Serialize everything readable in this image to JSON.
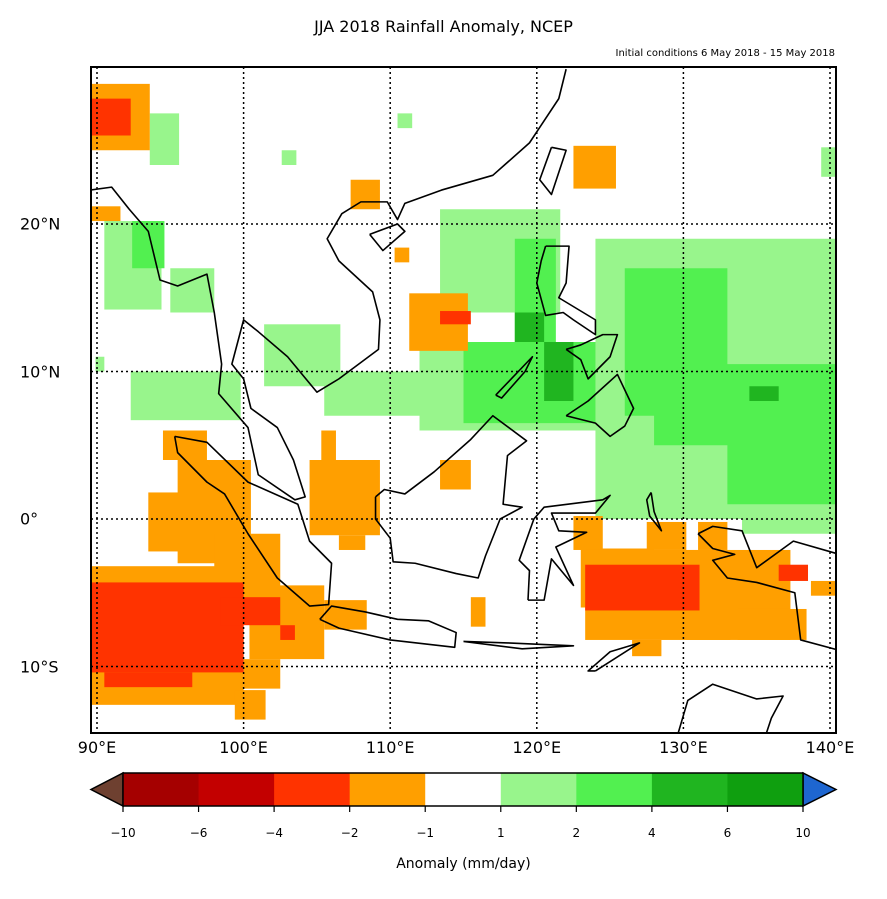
{
  "title": "JJA 2018 Rainfall Anomaly, NCEP",
  "subtitle": "Initial conditions 6 May 2018 - 15 May 2018",
  "map": {
    "extent": {
      "lon": [
        89.6,
        140.4
      ],
      "lat": [
        -14.5,
        30.3
      ]
    },
    "gridlines": "dotted",
    "lon_ticks": [
      {
        "value": 90,
        "label": "90°E"
      },
      {
        "value": 100,
        "label": "100°E"
      },
      {
        "value": 110,
        "label": "110°E"
      },
      {
        "value": 120,
        "label": "120°E"
      },
      {
        "value": 130,
        "label": "130°E"
      },
      {
        "value": 140,
        "label": "140°E"
      }
    ],
    "lat_ticks": [
      {
        "value": 20,
        "label": "20°N"
      },
      {
        "value": 10,
        "label": "10°N"
      },
      {
        "value": 0,
        "label": "0°"
      },
      {
        "value": -10,
        "label": "10°S"
      }
    ],
    "anomaly_regions": [
      {
        "lon": [
          90.5,
          94.4
        ],
        "lat": [
          14.2,
          20.2
        ],
        "bin": "1..2"
      },
      {
        "lon": [
          93.6,
          95.6
        ],
        "lat": [
          24,
          27.5
        ],
        "bin": "1..2"
      },
      {
        "lon": [
          92.3,
          99.8
        ],
        "lat": [
          6.7,
          10
        ],
        "bin": "1..2"
      },
      {
        "lon": [
          95,
          98
        ],
        "lat": [
          14,
          17
        ],
        "bin": "1..2"
      },
      {
        "lon": [
          101.4,
          106.6
        ],
        "lat": [
          9,
          13.2
        ],
        "bin": "1..2"
      },
      {
        "lon": [
          105.5,
          116.2
        ],
        "lat": [
          7,
          10
        ],
        "bin": "1..2"
      },
      {
        "lon": [
          113.4,
          121.6
        ],
        "lat": [
          14,
          21
        ],
        "bin": "1..2"
      },
      {
        "lon": [
          112,
          125
        ],
        "lat": [
          6,
          12
        ],
        "bin": "1..2"
      },
      {
        "lon": [
          124,
          140.4
        ],
        "lat": [
          0,
          19
        ],
        "bin": "1..2"
      },
      {
        "lon": [
          134,
          140.4
        ],
        "lat": [
          -1,
          1
        ],
        "bin": "1..2"
      },
      {
        "lon": [
          139.4,
          140.4
        ],
        "lat": [
          23.2,
          25.2
        ],
        "bin": "1..2"
      },
      {
        "lon": [
          110.5,
          111.5
        ],
        "lat": [
          26.5,
          27.5
        ],
        "bin": "1..2"
      },
      {
        "lon": [
          102.6,
          103.6
        ],
        "lat": [
          24,
          25
        ],
        "bin": "1..2"
      },
      {
        "lon": [
          89.9,
          90.5
        ],
        "lat": [
          10,
          11
        ],
        "bin": "1..2"
      },
      {
        "lon": [
          92.4,
          94.6
        ],
        "lat": [
          17,
          20.2
        ],
        "bin": "2..4"
      },
      {
        "lon": [
          118.5,
          121.3
        ],
        "lat": [
          10,
          19
        ],
        "bin": "2..4"
      },
      {
        "lon": [
          115,
          124
        ],
        "lat": [
          6.5,
          12
        ],
        "bin": "2..4"
      },
      {
        "lon": [
          126,
          133
        ],
        "lat": [
          7,
          17
        ],
        "bin": "2..4"
      },
      {
        "lon": [
          128,
          140.4
        ],
        "lat": [
          5,
          10.5
        ],
        "bin": "2..4"
      },
      {
        "lon": [
          133,
          140.4
        ],
        "lat": [
          1,
          6
        ],
        "bin": "2..4"
      },
      {
        "lon": [
          118.5,
          120.5
        ],
        "lat": [
          12,
          14
        ],
        "bin": "4..6"
      },
      {
        "lon": [
          120.5,
          122.5
        ],
        "lat": [
          8,
          12
        ],
        "bin": "4..6"
      },
      {
        "lon": [
          134.5,
          136.5
        ],
        "lat": [
          8,
          9
        ],
        "bin": "4..6"
      },
      {
        "lon": [
          89.6,
          93.6
        ],
        "lat": [
          25,
          29.5
        ],
        "bin": "-2..-1"
      },
      {
        "lon": [
          89.6,
          91.6
        ],
        "lat": [
          20.2,
          21.2
        ],
        "bin": "-2..-1"
      },
      {
        "lon": [
          107.3,
          109.3
        ],
        "lat": [
          21,
          23
        ],
        "bin": "-2..-1"
      },
      {
        "lon": [
          110.3,
          111.3
        ],
        "lat": [
          17.4,
          18.4
        ],
        "bin": "-2..-1"
      },
      {
        "lon": [
          111.3,
          115.3
        ],
        "lat": [
          11.4,
          15.3
        ],
        "bin": "-2..-1"
      },
      {
        "lon": [
          122.5,
          125.4
        ],
        "lat": [
          22.4,
          25.3
        ],
        "bin": "-2..-1"
      },
      {
        "lon": [
          94.5,
          97.5
        ],
        "lat": [
          4,
          6
        ],
        "bin": "-2..-1"
      },
      {
        "lon": [
          93.5,
          96.5
        ],
        "lat": [
          -2.2,
          1.8
        ],
        "bin": "-2..-1"
      },
      {
        "lon": [
          95.5,
          100.5
        ],
        "lat": [
          -3,
          4
        ],
        "bin": "-2..-1"
      },
      {
        "lon": [
          98,
          102.5
        ],
        "lat": [
          -5.5,
          -1
        ],
        "bin": "-2..-1"
      },
      {
        "lon": [
          100.4,
          105.5
        ],
        "lat": [
          -9.5,
          -4.5
        ],
        "bin": "-2..-1"
      },
      {
        "lon": [
          105.5,
          108.4
        ],
        "lat": [
          -7.5,
          -5.5
        ],
        "bin": "-2..-1"
      },
      {
        "lon": [
          104.5,
          109.3
        ],
        "lat": [
          -1.1,
          4
        ],
        "bin": "-2..-1"
      },
      {
        "lon": [
          105.3,
          106.3
        ],
        "lat": [
          4,
          6
        ],
        "bin": "-2..-1"
      },
      {
        "lon": [
          106.5,
          108.3
        ],
        "lat": [
          -2.1,
          -1.1
        ],
        "bin": "-2..-1"
      },
      {
        "lon": [
          113.4,
          115.5
        ],
        "lat": [
          2,
          4
        ],
        "bin": "-2..-1"
      },
      {
        "lon": [
          115.5,
          116.5
        ],
        "lat": [
          -7.3,
          -5.3
        ],
        "bin": "-2..-1"
      },
      {
        "lon": [
          89.6,
          100
        ],
        "lat": [
          -12.6,
          -3.2
        ],
        "bin": "-2..-1"
      },
      {
        "lon": [
          99.4,
          101.5
        ],
        "lat": [
          -13.6,
          -11.6
        ],
        "bin": "-2..-1"
      },
      {
        "lon": [
          100,
          102.5
        ],
        "lat": [
          -11.5,
          -9.5
        ],
        "bin": "-2..-1"
      },
      {
        "lon": [
          122.5,
          124.5
        ],
        "lat": [
          -2.1,
          0.2
        ],
        "bin": "-2..-1"
      },
      {
        "lon": [
          123,
          128
        ],
        "lat": [
          -6,
          -2
        ],
        "bin": "-2..-1"
      },
      {
        "lon": [
          123.3,
          133.2
        ],
        "lat": [
          -8.2,
          -2.1
        ],
        "bin": "-2..-1"
      },
      {
        "lon": [
          126.5,
          128.5
        ],
        "lat": [
          -9.3,
          -8.2
        ],
        "bin": "-2..-1"
      },
      {
        "lon": [
          127.5,
          130.2
        ],
        "lat": [
          -2.1,
          -0.2
        ],
        "bin": "-2..-1"
      },
      {
        "lon": [
          130.2,
          137.3
        ],
        "lat": [
          -8.2,
          -2.1
        ],
        "bin": "-2..-1"
      },
      {
        "lon": [
          131,
          133
        ],
        "lat": [
          -2.1,
          -0.2
        ],
        "bin": "-2..-1"
      },
      {
        "lon": [
          133.7,
          138.4
        ],
        "lat": [
          -8.2,
          -6.1
        ],
        "bin": "-2..-1"
      },
      {
        "lon": [
          138.7,
          140.4
        ],
        "lat": [
          -5.2,
          -4.2
        ],
        "bin": "-2..-1"
      },
      {
        "lon": [
          89.6,
          92.3
        ],
        "lat": [
          26,
          28.5
        ],
        "bin": "-4..-2"
      },
      {
        "lon": [
          89.6,
          100
        ],
        "lat": [
          -10.4,
          -4.3
        ],
        "bin": "-4..-2"
      },
      {
        "lon": [
          90.5,
          96.5
        ],
        "lat": [
          -11.4,
          -10.4
        ],
        "bin": "-4..-2"
      },
      {
        "lon": [
          98.4,
          102.5
        ],
        "lat": [
          -7.2,
          -5.3
        ],
        "bin": "-4..-2"
      },
      {
        "lon": [
          102.5,
          103.5
        ],
        "lat": [
          -8.2,
          -7.2
        ],
        "bin": "-4..-2"
      },
      {
        "lon": [
          123.3,
          131.1
        ],
        "lat": [
          -6.2,
          -3.1
        ],
        "bin": "-4..-2"
      },
      {
        "lon": [
          136.5,
          138.5
        ],
        "lat": [
          -4.2,
          -3.1
        ],
        "bin": "-4..-2"
      },
      {
        "lon": [
          113.4,
          115.5
        ],
        "lat": [
          13.2,
          14.1
        ],
        "bin": "-4..-2"
      }
    ]
  },
  "colorbar": {
    "label": "Anomaly (mm/day)",
    "tick_labels": [
      "−10",
      "−6",
      "−4",
      "−2",
      "−1",
      "1",
      "2",
      "4",
      "6",
      "10"
    ],
    "bins": [
      {
        "range": "<-10",
        "color": "#6e4030"
      },
      {
        "range": "-10..-6",
        "color": "#a50000"
      },
      {
        "range": "-6..-4",
        "color": "#c30000"
      },
      {
        "range": "-4..-2",
        "color": "#ff3300"
      },
      {
        "range": "-2..-1",
        "color": "#ff9f00"
      },
      {
        "range": "-1..1",
        "color": "#ffffff"
      },
      {
        "range": "1..2",
        "color": "#98f58c"
      },
      {
        "range": "2..4",
        "color": "#52f050"
      },
      {
        "range": "4..6",
        "color": "#20b520"
      },
      {
        "range": "6..10",
        "color": "#0f9f0f"
      },
      {
        "range": ">10",
        "color": "#1e66d0"
      }
    ]
  }
}
